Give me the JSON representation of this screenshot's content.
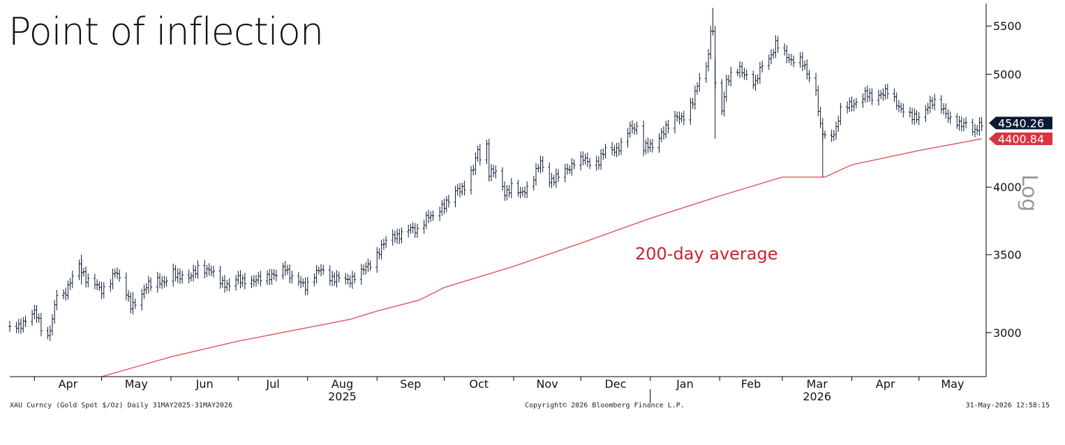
{
  "title": "Point of inflection",
  "footer": {
    "left": "XAU Curncy (Gold Spot  $/Oz) Daily 31MAY2025-31MAY2026",
    "center": "Copyright© 2026 Bloomberg Finance L.P.",
    "right": "31-May-2026 12:58:15"
  },
  "chart_data": {
    "type": "bar",
    "subtype": "ohlc",
    "scale": "log",
    "scale_label": "Log",
    "ylim": [
      2750,
      5750
    ],
    "yticks": [
      3000,
      3500,
      4000,
      5000,
      5500
    ],
    "xlim": [
      "2025-03-21",
      "2026-05-31"
    ],
    "months": [
      {
        "label": "Apr",
        "date": "2025-04-01"
      },
      {
        "label": "May",
        "date": "2025-05-01"
      },
      {
        "label": "Jun",
        "date": "2025-06-01"
      },
      {
        "label": "Jul",
        "date": "2025-07-01"
      },
      {
        "label": "Aug",
        "date": "2025-08-01"
      },
      {
        "label": "Sep",
        "date": "2025-09-01"
      },
      {
        "label": "Oct",
        "date": "2025-10-01"
      },
      {
        "label": "Nov",
        "date": "2025-11-01"
      },
      {
        "label": "Dec",
        "date": "2025-12-01"
      },
      {
        "label": "Jan",
        "date": "2026-01-01"
      },
      {
        "label": "Feb",
        "date": "2026-02-01"
      },
      {
        "label": "Mar",
        "date": "2026-03-01"
      },
      {
        "label": "Apr",
        "date": "2026-04-01"
      },
      {
        "label": "May",
        "date": "2026-05-01"
      }
    ],
    "years": [
      {
        "label": "2025",
        "date": "2025-08-01"
      },
      {
        "label": "2026",
        "date": "2026-03-01"
      }
    ],
    "year_divider_date": "2026-01-01",
    "price_series": {
      "name": "XAU Curncy",
      "color": "#0b1a33",
      "points": [
        [
          "2025-03-21",
          3020
        ],
        [
          "2025-03-25",
          3030
        ],
        [
          "2025-03-28",
          3085
        ],
        [
          "2025-04-01",
          3120
        ],
        [
          "2025-04-04",
          3035
        ],
        [
          "2025-04-07",
          2980
        ],
        [
          "2025-04-09",
          3080
        ],
        [
          "2025-04-11",
          3230
        ],
        [
          "2025-04-14",
          3220
        ],
        [
          "2025-04-17",
          3330
        ],
        [
          "2025-04-21",
          3420
        ],
        [
          "2025-04-22",
          3380
        ],
        [
          "2025-04-24",
          3340
        ],
        [
          "2025-04-28",
          3320
        ],
        [
          "2025-05-01",
          3240
        ],
        [
          "2025-05-05",
          3330
        ],
        [
          "2025-05-07",
          3400
        ],
        [
          "2025-05-09",
          3330
        ],
        [
          "2025-05-12",
          3230
        ],
        [
          "2025-05-14",
          3170
        ],
        [
          "2025-05-16",
          3190
        ],
        [
          "2025-05-19",
          3230
        ],
        [
          "2025-05-22",
          3300
        ],
        [
          "2025-05-26",
          3340
        ],
        [
          "2025-05-29",
          3300
        ],
        [
          "2025-06-02",
          3380
        ],
        [
          "2025-06-05",
          3360
        ],
        [
          "2025-06-09",
          3330
        ],
        [
          "2025-06-13",
          3420
        ],
        [
          "2025-06-16",
          3400
        ],
        [
          "2025-06-20",
          3370
        ],
        [
          "2025-06-24",
          3320
        ],
        [
          "2025-06-27",
          3280
        ],
        [
          "2025-07-01",
          3340
        ],
        [
          "2025-07-04",
          3330
        ],
        [
          "2025-07-08",
          3310
        ],
        [
          "2025-07-11",
          3350
        ],
        [
          "2025-07-14",
          3360
        ],
        [
          "2025-07-18",
          3350
        ],
        [
          "2025-07-22",
          3420
        ],
        [
          "2025-07-25",
          3340
        ],
        [
          "2025-07-28",
          3310
        ],
        [
          "2025-07-31",
          3290
        ],
        [
          "2025-08-04",
          3370
        ],
        [
          "2025-08-07",
          3390
        ],
        [
          "2025-08-11",
          3350
        ],
        [
          "2025-08-14",
          3340
        ],
        [
          "2025-08-19",
          3320
        ],
        [
          "2025-08-22",
          3360
        ],
        [
          "2025-08-26",
          3390
        ],
        [
          "2025-08-29",
          3440
        ],
        [
          "2025-09-02",
          3530
        ],
        [
          "2025-09-05",
          3590
        ],
        [
          "2025-09-09",
          3640
        ],
        [
          "2025-09-12",
          3640
        ],
        [
          "2025-09-16",
          3680
        ],
        [
          "2025-09-19",
          3680
        ],
        [
          "2025-09-23",
          3760
        ],
        [
          "2025-09-26",
          3770
        ],
        [
          "2025-09-30",
          3860
        ],
        [
          "2025-10-03",
          3880
        ],
        [
          "2025-10-07",
          3980
        ],
        [
          "2025-10-10",
          4010
        ],
        [
          "2025-10-14",
          4140
        ],
        [
          "2025-10-16",
          4300
        ],
        [
          "2025-10-17",
          4250
        ],
        [
          "2025-10-20",
          4350
        ],
        [
          "2025-10-21",
          4120
        ],
        [
          "2025-10-24",
          4110
        ],
        [
          "2025-10-28",
          3960
        ],
        [
          "2025-10-31",
          4000
        ],
        [
          "2025-11-04",
          3940
        ],
        [
          "2025-11-07",
          4000
        ],
        [
          "2025-11-11",
          4120
        ],
        [
          "2025-11-13",
          4190
        ],
        [
          "2025-11-17",
          4060
        ],
        [
          "2025-11-21",
          4080
        ],
        [
          "2025-11-25",
          4140
        ],
        [
          "2025-11-28",
          4210
        ],
        [
          "2025-12-02",
          4220
        ],
        [
          "2025-12-05",
          4200
        ],
        [
          "2025-12-09",
          4210
        ],
        [
          "2025-12-12",
          4300
        ],
        [
          "2025-12-16",
          4310
        ],
        [
          "2025-12-19",
          4340
        ],
        [
          "2025-12-23",
          4490
        ],
        [
          "2025-12-26",
          4510
        ],
        [
          "2025-12-29",
          4330
        ],
        [
          "2026-01-02",
          4330
        ],
        [
          "2026-01-06",
          4460
        ],
        [
          "2026-01-09",
          4500
        ],
        [
          "2026-01-13",
          4600
        ],
        [
          "2026-01-16",
          4600
        ],
        [
          "2026-01-20",
          4720
        ],
        [
          "2026-01-23",
          4980
        ],
        [
          "2026-01-26",
          5080
        ],
        [
          "2026-01-28",
          5400
        ],
        [
          "2026-01-29",
          5450
        ],
        [
          "2026-01-30",
          4880
        ],
        [
          "2026-02-02",
          4660
        ],
        [
          "2026-02-04",
          4950
        ],
        [
          "2026-02-06",
          4980
        ],
        [
          "2026-02-10",
          5040
        ],
        [
          "2026-02-13",
          5000
        ],
        [
          "2026-02-17",
          4900
        ],
        [
          "2026-02-20",
          5100
        ],
        [
          "2026-02-24",
          5200
        ],
        [
          "2026-02-26",
          5300
        ],
        [
          "2026-03-02",
          5200
        ],
        [
          "2026-03-05",
          5150
        ],
        [
          "2026-03-09",
          5130
        ],
        [
          "2026-03-12",
          5020
        ],
        [
          "2026-03-16",
          4850
        ],
        [
          "2026-03-18",
          4500
        ],
        [
          "2026-03-20",
          4400
        ],
        [
          "2026-03-24",
          4450
        ],
        [
          "2026-03-27",
          4650
        ],
        [
          "2026-03-31",
          4700
        ],
        [
          "2026-04-03",
          4740
        ],
        [
          "2026-04-07",
          4800
        ],
        [
          "2026-04-10",
          4770
        ],
        [
          "2026-04-14",
          4820
        ],
        [
          "2026-04-17",
          4820
        ],
        [
          "2026-04-21",
          4720
        ],
        [
          "2026-04-24",
          4660
        ],
        [
          "2026-04-28",
          4580
        ],
        [
          "2026-05-01",
          4600
        ],
        [
          "2026-05-05",
          4700
        ],
        [
          "2026-05-08",
          4720
        ],
        [
          "2026-05-12",
          4680
        ],
        [
          "2026-05-15",
          4560
        ],
        [
          "2026-05-19",
          4520
        ],
        [
          "2026-05-22",
          4560
        ],
        [
          "2026-05-26",
          4450
        ],
        [
          "2026-05-29",
          4540
        ]
      ]
    },
    "moving_average": {
      "name": "200-day average",
      "color": "#e0555c",
      "points": [
        [
          "2025-05-01",
          2750
        ],
        [
          "2025-06-01",
          2860
        ],
        [
          "2025-07-01",
          2950
        ],
        [
          "2025-08-01",
          3030
        ],
        [
          "2025-08-20",
          3080
        ],
        [
          "2025-09-01",
          3130
        ],
        [
          "2025-09-20",
          3200
        ],
        [
          "2025-10-01",
          3280
        ],
        [
          "2025-11-01",
          3420
        ],
        [
          "2025-12-01",
          3580
        ],
        [
          "2026-01-01",
          3760
        ],
        [
          "2026-02-01",
          3930
        ],
        [
          "2026-03-01",
          4080
        ],
        [
          "2026-03-20",
          4080
        ],
        [
          "2026-04-01",
          4180
        ],
        [
          "2026-05-01",
          4300
        ],
        [
          "2026-05-29",
          4400.84
        ]
      ]
    },
    "labels": {
      "last_price": "4540.26",
      "last_price_color": "#0b1a33",
      "moving_average_value": "4400.84",
      "moving_average_color": "#d9343e",
      "annotation": "200-day average",
      "annotation_color": "#c8242e"
    }
  }
}
